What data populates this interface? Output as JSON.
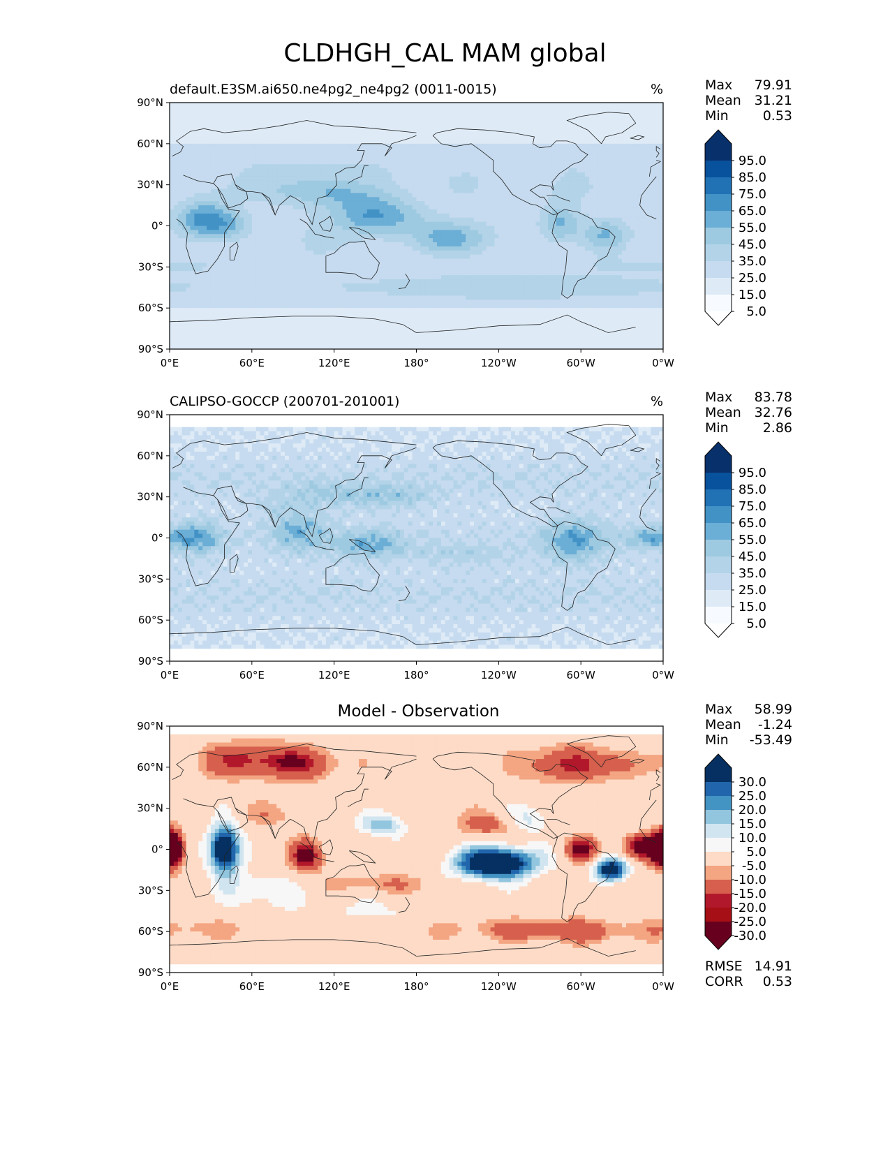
{
  "figure": {
    "title": "CLDHGH_CAL MAM global"
  },
  "panels": [
    {
      "id": "model",
      "title_left": "default.E3SM.ai650.ne4pg2_ne4pg2 (0011-0015)",
      "title_center": "",
      "unit": "%",
      "stats": [
        {
          "label": "Max",
          "value": "79.91"
        },
        {
          "label": "Mean",
          "value": "31.21"
        },
        {
          "label": "Min",
          "value": "0.53"
        }
      ],
      "colorbar": {
        "labels": [
          "95.0",
          "85.0",
          "75.0",
          "65.0",
          "55.0",
          "45.0",
          "35.0",
          "25.0",
          "15.0",
          "5.0"
        ]
      }
    },
    {
      "id": "obs",
      "title_left": "CALIPSO-GOCCP (200701-201001)",
      "title_center": "",
      "unit": "%",
      "stats": [
        {
          "label": "Max",
          "value": "83.78"
        },
        {
          "label": "Mean",
          "value": "32.76"
        },
        {
          "label": "Min",
          "value": "2.86"
        }
      ],
      "colorbar": {
        "labels": [
          "95.0",
          "85.0",
          "75.0",
          "65.0",
          "55.0",
          "45.0",
          "35.0",
          "25.0",
          "15.0",
          "5.0"
        ]
      }
    },
    {
      "id": "diff",
      "title_left": "",
      "title_center": "Model - Observation",
      "unit": "",
      "stats": [
        {
          "label": "Max",
          "value": "58.99"
        },
        {
          "label": "Mean",
          "value": "-1.24"
        },
        {
          "label": "Min",
          "value": "-53.49"
        }
      ],
      "extra_stats": [
        {
          "label": "RMSE",
          "value": "14.91"
        },
        {
          "label": "CORR",
          "value": "0.53"
        }
      ],
      "colorbar": {
        "labels": [
          "30.0",
          "25.0",
          "20.0",
          "15.0",
          "10.0",
          "5.0",
          "-5.0",
          "-10.0",
          "-15.0",
          "-20.0",
          "-25.0",
          "-30.0"
        ]
      }
    }
  ],
  "axes": {
    "lat_ticks": [
      "90°N",
      "60°N",
      "30°N",
      "0°",
      "30°S",
      "60°S",
      "90°S"
    ],
    "lon_ticks": [
      "0°E",
      "60°E",
      "120°E",
      "180°",
      "120°W",
      "60°W",
      "0°W"
    ]
  },
  "colors": {
    "sequential": [
      "#f7fbff",
      "#deebf7",
      "#c6dbef",
      "#b3d3e8",
      "#9ecae1",
      "#6baed6",
      "#4292c6",
      "#2171b5",
      "#08519c",
      "#08306b"
    ],
    "diverging": [
      "#67001f",
      "#b2182b",
      "#d6604d",
      "#f4a582",
      "#fddbc7",
      "#f7f7f7",
      "#d1e5f0",
      "#92c5de",
      "#4393c3",
      "#2166ac",
      "#053061"
    ]
  },
  "chart_data": [
    {
      "type": "heatmap",
      "title": "default.E3SM.ai650.ne4pg2_ne4pg2 (0011-0015)",
      "unit": "%",
      "xlim": [
        0,
        360
      ],
      "ylim": [
        -90,
        90
      ],
      "color_levels": [
        5,
        15,
        25,
        35,
        45,
        55,
        65,
        75,
        85,
        95
      ],
      "stats": {
        "max": 79.91,
        "mean": 31.21,
        "min": 0.53
      }
    },
    {
      "type": "heatmap",
      "title": "CALIPSO-GOCCP (200701-201001)",
      "unit": "%",
      "xlim": [
        0,
        360
      ],
      "ylim": [
        -90,
        90
      ],
      "color_levels": [
        5,
        15,
        25,
        35,
        45,
        55,
        65,
        75,
        85,
        95
      ],
      "stats": {
        "max": 83.78,
        "mean": 32.76,
        "min": 2.86
      }
    },
    {
      "type": "heatmap",
      "title": "Model - Observation",
      "xlim": [
        0,
        360
      ],
      "ylim": [
        -90,
        90
      ],
      "color_levels": [
        -30,
        -25,
        -20,
        -15,
        -10,
        -5,
        5,
        10,
        15,
        20,
        25,
        30
      ],
      "stats": {
        "max": 58.99,
        "mean": -1.24,
        "min": -53.49,
        "rmse": 14.91,
        "corr": 0.53
      }
    }
  ]
}
